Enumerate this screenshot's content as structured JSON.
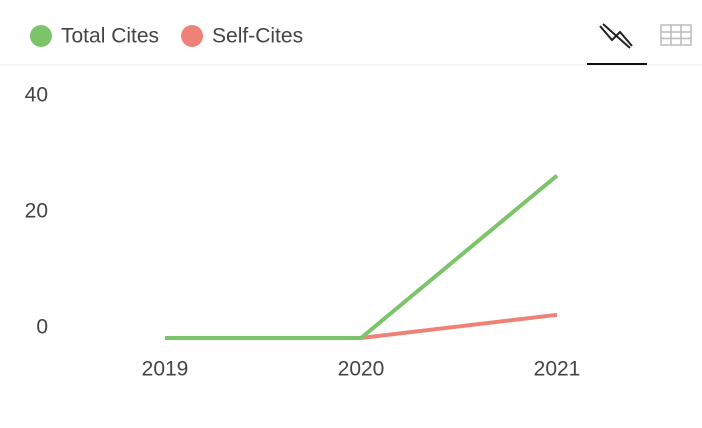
{
  "chart_data": {
    "type": "line",
    "categories": [
      "2019",
      "2020",
      "2021"
    ],
    "series": [
      {
        "name": "Total Cites",
        "color": "#7cc46a",
        "values": [
          0,
          0,
          28
        ]
      },
      {
        "name": "Self-Cites",
        "color": "#ee8277",
        "values": [
          0,
          0,
          4
        ]
      }
    ],
    "ylim": [
      0,
      40
    ],
    "yticks": [
      0,
      20,
      40
    ],
    "grid": false
  }
}
